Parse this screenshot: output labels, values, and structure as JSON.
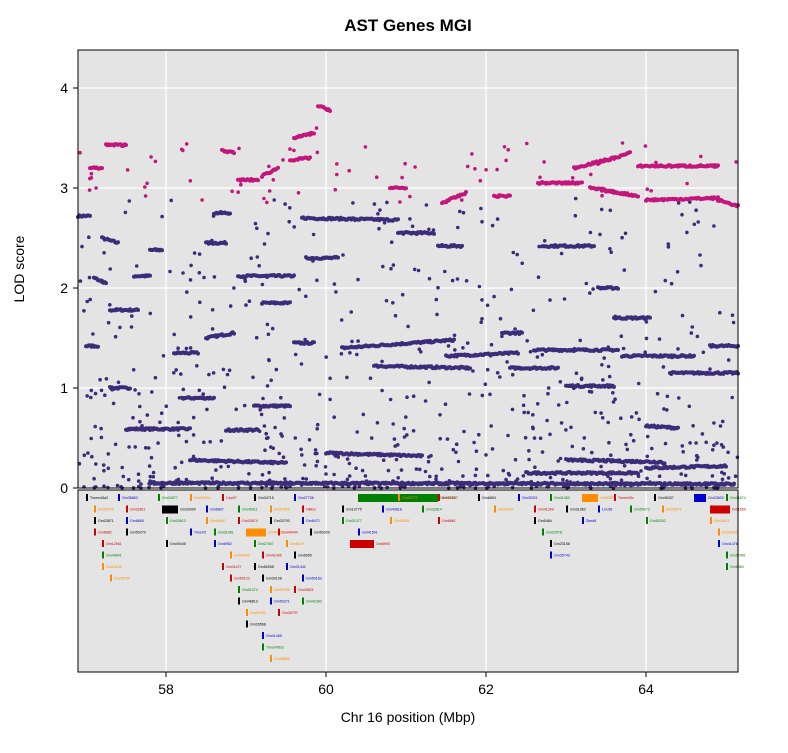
{
  "chart_data": {
    "type": "scatter",
    "title": "AST Genes MGI",
    "xlabel": "Chr 16 position (Mbp)",
    "ylabel": "LOD score",
    "xlim": [
      56.9,
      65.15
    ],
    "ylim": [
      0,
      4.38
    ],
    "x_ticks": [
      58,
      60,
      62,
      64
    ],
    "y_ticks": [
      0,
      1,
      2,
      3,
      4
    ],
    "grid": true,
    "series": [
      {
        "color": "#3b2d7a",
        "tracks": [
          [
            [
              56.9,
              2.72
            ],
            [
              57.05,
              2.72
            ]
          ],
          [
            [
              57.1,
              2.1
            ],
            [
              57.25,
              2.05
            ]
          ],
          [
            [
              57.2,
              2.5
            ],
            [
              57.4,
              2.45
            ]
          ],
          [
            [
              57.3,
              1.78
            ],
            [
              57.65,
              1.78
            ]
          ],
          [
            [
              57.6,
              2.12
            ],
            [
              57.8,
              2.12
            ]
          ],
          [
            [
              57.8,
              2.38
            ],
            [
              57.95,
              2.38
            ]
          ],
          [
            [
              57.0,
              1.42
            ],
            [
              57.15,
              1.42
            ]
          ],
          [
            [
              57.3,
              1.0
            ],
            [
              57.55,
              1.0
            ]
          ],
          [
            [
              57.5,
              0.59
            ],
            [
              58.3,
              0.59
            ]
          ],
          [
            [
              58.1,
              1.35
            ],
            [
              58.4,
              1.35
            ]
          ],
          [
            [
              58.2,
              0.9
            ],
            [
              58.6,
              0.9
            ]
          ],
          [
            [
              58.5,
              1.5
            ],
            [
              58.85,
              1.55
            ]
          ],
          [
            [
              58.6,
              2.75
            ],
            [
              58.8,
              2.75
            ]
          ],
          [
            [
              58.5,
              2.45
            ],
            [
              58.75,
              2.45
            ]
          ],
          [
            [
              58.9,
              2.12
            ],
            [
              59.6,
              2.12
            ]
          ],
          [
            [
              59.2,
              1.85
            ],
            [
              59.55,
              1.85
            ]
          ],
          [
            [
              58.75,
              0.58
            ],
            [
              59.15,
              0.58
            ]
          ],
          [
            [
              59.1,
              0.82
            ],
            [
              59.55,
              0.82
            ]
          ],
          [
            [
              59.6,
              1.45
            ],
            [
              59.85,
              1.45
            ]
          ],
          [
            [
              59.75,
              2.3
            ],
            [
              60.15,
              2.3
            ]
          ],
          [
            [
              59.7,
              2.7
            ],
            [
              60.9,
              2.68
            ]
          ],
          [
            [
              60.2,
              1.4
            ],
            [
              61.6,
              1.48
            ]
          ],
          [
            [
              60.9,
              2.55
            ],
            [
              61.35,
              2.55
            ]
          ],
          [
            [
              60.6,
              1.22
            ],
            [
              61.8,
              1.2
            ]
          ],
          [
            [
              61.4,
              2.42
            ],
            [
              61.7,
              2.42
            ]
          ],
          [
            [
              61.5,
              1.32
            ],
            [
              62.4,
              1.35
            ]
          ],
          [
            [
              62.2,
              1.55
            ],
            [
              62.45,
              1.55
            ]
          ],
          [
            [
              62.3,
              1.2
            ],
            [
              62.9,
              1.2
            ]
          ],
          [
            [
              62.7,
              2.42
            ],
            [
              63.35,
              2.42
            ]
          ],
          [
            [
              62.6,
              1.38
            ],
            [
              63.65,
              1.38
            ]
          ],
          [
            [
              63.0,
              1.02
            ],
            [
              63.6,
              1.02
            ]
          ],
          [
            [
              63.4,
              2.0
            ],
            [
              63.65,
              2.0
            ]
          ],
          [
            [
              63.6,
              1.7
            ],
            [
              64.05,
              1.7
            ]
          ],
          [
            [
              63.7,
              1.32
            ],
            [
              64.6,
              1.32
            ]
          ],
          [
            [
              64.0,
              0.62
            ],
            [
              64.4,
              0.6
            ]
          ],
          [
            [
              64.3,
              1.15
            ],
            [
              65.15,
              1.15
            ]
          ],
          [
            [
              64.8,
              1.42
            ],
            [
              65.15,
              1.42
            ]
          ],
          [
            [
              58.3,
              0.28
            ],
            [
              59.5,
              0.25
            ]
          ],
          [
            [
              60.0,
              0.35
            ],
            [
              61.2,
              0.32
            ]
          ],
          [
            [
              62.5,
              0.15
            ],
            [
              63.9,
              0.15
            ]
          ],
          [
            [
              63.0,
              0.28
            ],
            [
              64.2,
              0.26
            ]
          ],
          [
            [
              64.0,
              0.2
            ],
            [
              65.0,
              0.22
            ]
          ],
          [
            [
              57.8,
              0.05
            ],
            [
              65.1,
              0.04
            ]
          ]
        ]
      },
      {
        "color": "#c2177a",
        "tracks": [
          [
            [
              57.05,
              3.2
            ],
            [
              57.2,
              3.2
            ]
          ],
          [
            [
              57.25,
              3.43
            ],
            [
              57.5,
              3.43
            ]
          ],
          [
            [
              58.7,
              3.38
            ],
            [
              58.85,
              3.35
            ]
          ],
          [
            [
              58.9,
              3.08
            ],
            [
              59.15,
              3.08
            ]
          ],
          [
            [
              59.2,
              3.12
            ],
            [
              59.4,
              3.2
            ]
          ],
          [
            [
              59.55,
              3.28
            ],
            [
              59.8,
              3.3
            ]
          ],
          [
            [
              59.6,
              3.5
            ],
            [
              59.85,
              3.55
            ]
          ],
          [
            [
              59.9,
              3.82
            ],
            [
              60.05,
              3.78
            ]
          ],
          [
            [
              60.8,
              3.0
            ],
            [
              61.0,
              3.0
            ]
          ],
          [
            [
              61.45,
              2.85
            ],
            [
              61.75,
              2.95
            ]
          ],
          [
            [
              62.1,
              2.92
            ],
            [
              62.3,
              2.92
            ]
          ],
          [
            [
              62.65,
              3.05
            ],
            [
              63.2,
              3.05
            ]
          ],
          [
            [
              63.1,
              3.2
            ],
            [
              63.6,
              3.3
            ]
          ],
          [
            [
              63.4,
              3.25
            ],
            [
              63.8,
              3.35
            ]
          ],
          [
            [
              63.9,
              3.22
            ],
            [
              64.9,
              3.22
            ]
          ],
          [
            [
              63.3,
              3.0
            ],
            [
              63.9,
              2.92
            ]
          ],
          [
            [
              64.0,
              2.88
            ],
            [
              64.9,
              2.9
            ]
          ],
          [
            [
              64.9,
              2.88
            ],
            [
              65.15,
              2.82
            ]
          ]
        ]
      }
    ],
    "genes_panel": {
      "labels": [
        "Tmem45a2",
        "Gm38863",
        "Gm34577",
        "Gm39454",
        "Cep97",
        "Gm34715",
        "Gm27736",
        "Gm37385",
        "Gm35772",
        "Gm50767",
        "Gm6894",
        "Gm39321",
        "Gm41460",
        "Gm50577",
        "Tmem30c",
        "Gm49437",
        "Gm23620",
        "Gm41674",
        "Gm26722",
        "Gm32811",
        "Gm33990",
        "Gm6807",
        "Gm45911",
        "Gm27503",
        "Nfkbiz",
        "Gm10775",
        "Gm49818",
        "Gm32814",
        "Gm34927",
        "Gm41399",
        "Gm31962",
        "Lrrc58",
        "Gm50073",
        "Gm28571",
        "Gm1559",
        "Gm23671",
        "Gm8665",
        "Gm34613",
        "Gm49857",
        "Gm33674",
        "Gm33700",
        "Gm8472",
        "Gm31377",
        "Gm50601",
        "Gm6861",
        "Gm5484",
        "Zbed6",
        "Gm50302",
        "Gm40611",
        "Gm6882",
        "Gm50270",
        "Tmem5",
        "Gm31461",
        "Gm49852",
        "Gm49444",
        "Gm50309",
        "Gm41501",
        "Gm32578",
        "Gm24063",
        "Gm12561",
        "Gm49445",
        "Gm6952",
        "Gm27507",
        "Gm8679",
        "Gm6993",
        "Gm23158",
        "Gm41476",
        "Gm49841",
        "Gm49493",
        "Gm41435",
        "Gm6955",
        "Gm35743",
        "Gm52481",
        "Gm24152",
        "Gm41127",
        "Gm50268",
        "Gm31442",
        "Gm5463",
        "Gm26759",
        "Gm50123",
        "Gm30108",
        "Gm50163",
        "Gm31374",
        "Gm33785",
        "Gm49821",
        "Gm48813",
        "Gm50371",
        "Gm42382",
        "Gm29782",
        "Gm35797",
        "Gm28568",
        "Gm41485"
      ],
      "colors": [
        "#000000",
        "#0000cc",
        "#008000",
        "#ff8c00",
        "#cc0000"
      ]
    }
  }
}
